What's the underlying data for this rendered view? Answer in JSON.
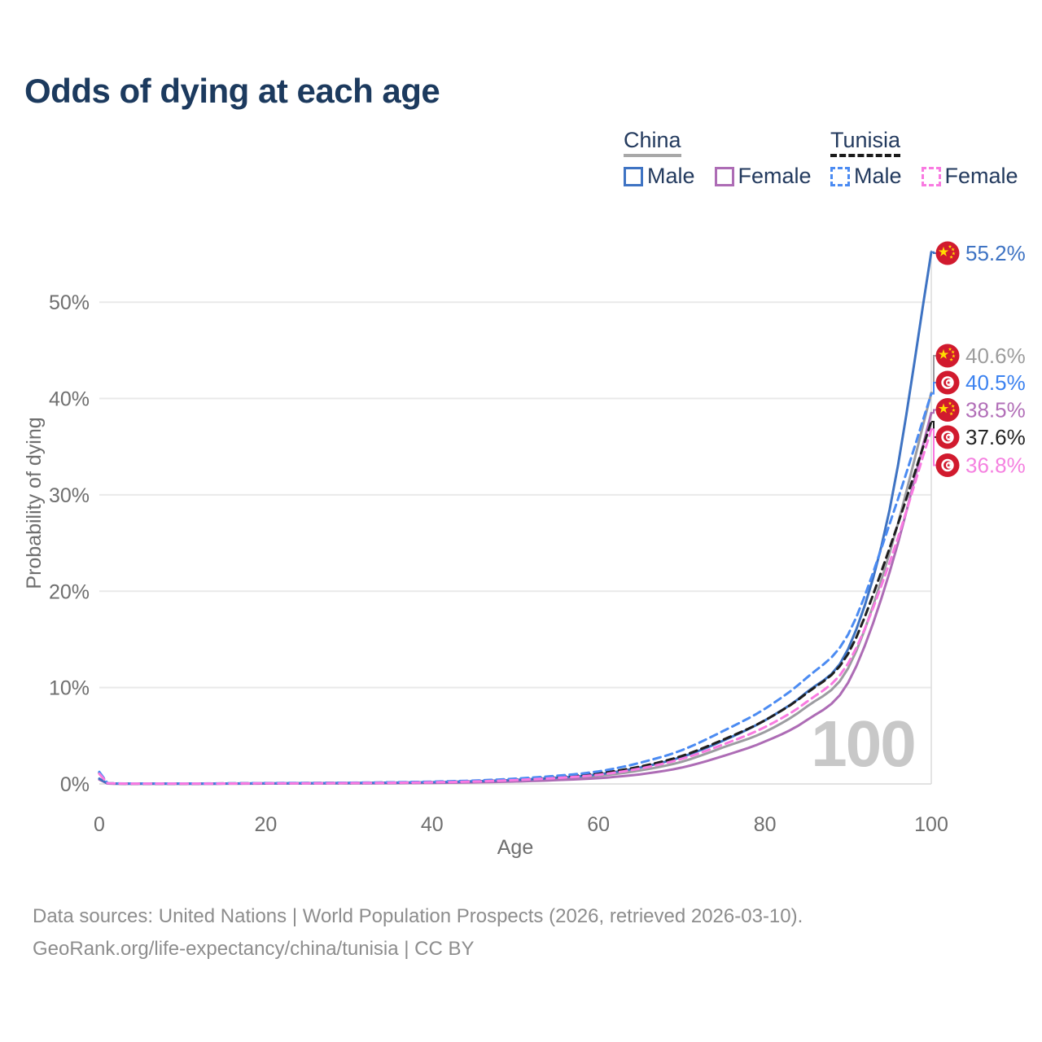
{
  "title": "Odds of dying at each age",
  "legend": {
    "china": {
      "label": "China",
      "male": "Male",
      "female": "Female"
    },
    "tunisia": {
      "label": "Tunisia",
      "male": "Male",
      "female": "Female"
    }
  },
  "chart_data": {
    "type": "line",
    "title": "Odds of dying at each age",
    "xlabel": "Age",
    "ylabel": "Probability of dying",
    "xlim": [
      0,
      100
    ],
    "ylim": [
      0,
      55.5
    ],
    "grid": "horizontal",
    "legend_position": "top-right",
    "x_ticks": [
      0,
      20,
      40,
      60,
      80,
      100
    ],
    "x_tick_labels": [
      "0",
      "20",
      "40",
      "60",
      "80",
      "100"
    ],
    "y_ticks": [
      0,
      10,
      20,
      30,
      40,
      50
    ],
    "y_tick_labels": [
      "0%",
      "10%",
      "20%",
      "30%",
      "40%",
      "50%"
    ],
    "watermark": "100",
    "marker_age": 100,
    "colors": {
      "china_male": "#3e73c3",
      "china_all": "#9c9ca1",
      "china_female": "#ad6cb5",
      "tunisia_male": "#4b8bf2",
      "tunisia_all": "#1f1f1f",
      "tunisia_female": "#f97ae1",
      "flag_red": "#d11a2e",
      "flag_star_yellow": "#ffde00",
      "grid": "#e9e9e9",
      "title_navy": "#1c3a5e",
      "axis_text": "#6f6f6f",
      "watermark_gray": "#c8c8c8"
    },
    "series": [
      {
        "id": "china-all",
        "name": "China",
        "country": "China",
        "sex": "All",
        "color": "#9c9ca1",
        "dashed": false,
        "flag": "china",
        "end_label": "40.6%",
        "end_label_color": "#9d9d9d",
        "points": [
          [
            0,
            0.5
          ],
          [
            1,
            0.04
          ],
          [
            5,
            0.02
          ],
          [
            10,
            0.02
          ],
          [
            15,
            0.03
          ],
          [
            20,
            0.05
          ],
          [
            25,
            0.06
          ],
          [
            30,
            0.08
          ],
          [
            35,
            0.11
          ],
          [
            40,
            0.15
          ],
          [
            45,
            0.22
          ],
          [
            50,
            0.35
          ],
          [
            55,
            0.55
          ],
          [
            60,
            0.85
          ],
          [
            65,
            1.4
          ],
          [
            70,
            2.3
          ],
          [
            75,
            3.8
          ],
          [
            80,
            5.4
          ],
          [
            85,
            8.0
          ],
          [
            90,
            12.0
          ],
          [
            95,
            24.0
          ],
          [
            100,
            40.6
          ]
        ]
      },
      {
        "id": "china-female",
        "name": "China Female",
        "country": "China",
        "sex": "Female",
        "color": "#ad6cb5",
        "dashed": false,
        "flag": "china",
        "end_label": "38.5%",
        "end_label_color": "#b26fb8",
        "points": [
          [
            0,
            0.45
          ],
          [
            1,
            0.04
          ],
          [
            5,
            0.02
          ],
          [
            10,
            0.02
          ],
          [
            15,
            0.03
          ],
          [
            20,
            0.04
          ],
          [
            25,
            0.05
          ],
          [
            30,
            0.06
          ],
          [
            35,
            0.08
          ],
          [
            40,
            0.11
          ],
          [
            45,
            0.16
          ],
          [
            50,
            0.25
          ],
          [
            55,
            0.4
          ],
          [
            60,
            0.6
          ],
          [
            65,
            1.0
          ],
          [
            70,
            1.7
          ],
          [
            75,
            2.9
          ],
          [
            80,
            4.4
          ],
          [
            85,
            6.6
          ],
          [
            90,
            10.5
          ],
          [
            95,
            22.0
          ],
          [
            100,
            38.5
          ]
        ]
      },
      {
        "id": "china-male",
        "name": "China Male",
        "country": "China",
        "sex": "Male",
        "color": "#3e73c3",
        "dashed": false,
        "flag": "china",
        "end_label": "55.2%",
        "end_label_color": "#3e73c3",
        "points": [
          [
            0,
            0.55
          ],
          [
            1,
            0.05
          ],
          [
            5,
            0.03
          ],
          [
            10,
            0.03
          ],
          [
            15,
            0.04
          ],
          [
            20,
            0.06
          ],
          [
            25,
            0.08
          ],
          [
            30,
            0.1
          ],
          [
            35,
            0.13
          ],
          [
            40,
            0.18
          ],
          [
            45,
            0.27
          ],
          [
            50,
            0.42
          ],
          [
            55,
            0.65
          ],
          [
            60,
            1.0
          ],
          [
            65,
            1.7
          ],
          [
            70,
            2.8
          ],
          [
            75,
            4.5
          ],
          [
            80,
            6.6
          ],
          [
            85,
            9.5
          ],
          [
            90,
            14.0
          ],
          [
            95,
            28.5
          ],
          [
            100,
            55.2
          ]
        ]
      },
      {
        "id": "tunisia-all",
        "name": "Tunisia",
        "country": "Tunisia",
        "sex": "All",
        "color": "#1f1f1f",
        "dashed": true,
        "flag": "tunisia",
        "end_label": "37.6%",
        "end_label_color": "#242424",
        "points": [
          [
            0,
            1.15
          ],
          [
            1,
            0.07
          ],
          [
            5,
            0.03
          ],
          [
            10,
            0.03
          ],
          [
            15,
            0.05
          ],
          [
            20,
            0.07
          ],
          [
            25,
            0.09
          ],
          [
            30,
            0.11
          ],
          [
            35,
            0.14
          ],
          [
            40,
            0.2
          ],
          [
            45,
            0.3
          ],
          [
            50,
            0.47
          ],
          [
            55,
            0.72
          ],
          [
            60,
            1.1
          ],
          [
            65,
            1.8
          ],
          [
            70,
            2.9
          ],
          [
            75,
            4.6
          ],
          [
            80,
            6.6
          ],
          [
            85,
            9.4
          ],
          [
            90,
            13.5
          ],
          [
            95,
            24.5
          ],
          [
            100,
            37.6
          ]
        ]
      },
      {
        "id": "tunisia-male",
        "name": "Tunisia Male",
        "country": "Tunisia",
        "sex": "Male",
        "color": "#4b8bf2",
        "dashed": true,
        "flag": "tunisia",
        "end_label": "40.5%",
        "end_label_color": "#3c82f0",
        "points": [
          [
            0,
            1.25
          ],
          [
            1,
            0.08
          ],
          [
            5,
            0.04
          ],
          [
            10,
            0.04
          ],
          [
            15,
            0.06
          ],
          [
            20,
            0.09
          ],
          [
            25,
            0.11
          ],
          [
            30,
            0.13
          ],
          [
            35,
            0.17
          ],
          [
            40,
            0.24
          ],
          [
            45,
            0.35
          ],
          [
            50,
            0.55
          ],
          [
            55,
            0.85
          ],
          [
            60,
            1.3
          ],
          [
            65,
            2.2
          ],
          [
            70,
            3.5
          ],
          [
            75,
            5.5
          ],
          [
            80,
            7.8
          ],
          [
            85,
            11.0
          ],
          [
            90,
            15.5
          ],
          [
            95,
            27.0
          ],
          [
            100,
            40.5
          ]
        ]
      },
      {
        "id": "tunisia-female",
        "name": "Tunisia Female",
        "country": "Tunisia",
        "sex": "Female",
        "color": "#f97ae1",
        "dashed": true,
        "flag": "tunisia",
        "end_label": "36.8%",
        "end_label_color": "#f581e0",
        "points": [
          [
            0,
            1.05
          ],
          [
            1,
            0.07
          ],
          [
            5,
            0.03
          ],
          [
            10,
            0.03
          ],
          [
            15,
            0.04
          ],
          [
            20,
            0.06
          ],
          [
            25,
            0.07
          ],
          [
            30,
            0.09
          ],
          [
            35,
            0.12
          ],
          [
            40,
            0.17
          ],
          [
            45,
            0.25
          ],
          [
            50,
            0.4
          ],
          [
            55,
            0.62
          ],
          [
            60,
            0.95
          ],
          [
            65,
            1.6
          ],
          [
            70,
            2.6
          ],
          [
            75,
            4.1
          ],
          [
            80,
            5.9
          ],
          [
            85,
            8.5
          ],
          [
            90,
            12.5
          ],
          [
            95,
            23.0
          ],
          [
            100,
            36.8
          ]
        ]
      }
    ]
  },
  "footer": {
    "line1": "Data sources: United Nations | World Population Prospects (2026, retrieved 2026-03-10).",
    "line2": "GeoRank.org/life-expectancy/china/tunisia | CC BY"
  }
}
